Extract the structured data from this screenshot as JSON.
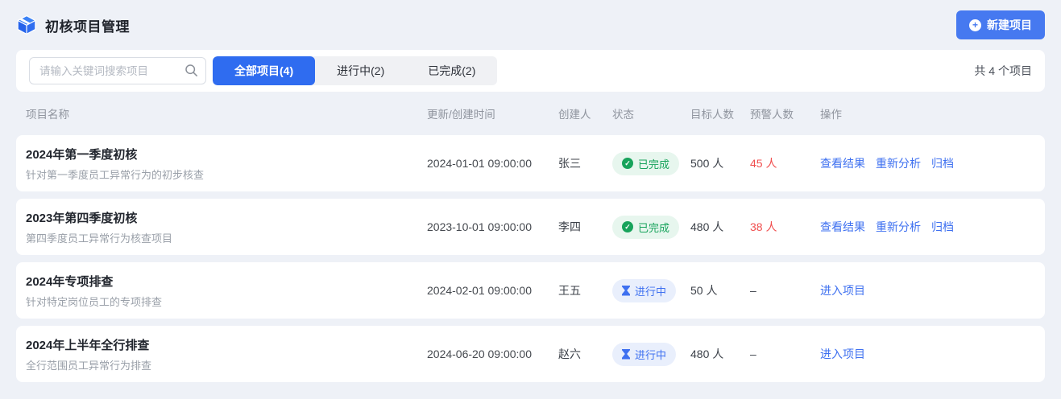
{
  "page": {
    "title": "初核项目管理",
    "new_project_button": "新建项目",
    "total_count_text": "共 4 个项目"
  },
  "toolbar": {
    "search_placeholder": "请输入关键词搜索项目",
    "tabs": [
      {
        "label": "全部项目(4)",
        "active": true
      },
      {
        "label": "进行中(2)",
        "active": false
      },
      {
        "label": "已完成(2)",
        "active": false
      }
    ]
  },
  "table": {
    "columns": [
      "项目名称",
      "更新/创建时间",
      "创建人",
      "状态",
      "目标人数",
      "预警人数",
      "操作"
    ],
    "rows": [
      {
        "name": "2024年第一季度初核",
        "description": "针对第一季度员工异常行为的初步核查",
        "time": "2024-01-01 09:00:00",
        "creator": "张三",
        "status": "已完成",
        "status_type": "done",
        "target": "500 人",
        "warning": "45 人",
        "warning_alert": true,
        "actions": [
          "查看结果",
          "重新分析",
          "归档"
        ]
      },
      {
        "name": "2023年第四季度初核",
        "description": "第四季度员工异常行为核查项目",
        "time": "2023-10-01 09:00:00",
        "creator": "李四",
        "status": "已完成",
        "status_type": "done",
        "target": "480 人",
        "warning": "38 人",
        "warning_alert": true,
        "actions": [
          "查看结果",
          "重新分析",
          "归档"
        ]
      },
      {
        "name": "2024年专项排查",
        "description": "针对特定岗位员工的专项排查",
        "time": "2024-02-01 09:00:00",
        "creator": "王五",
        "status": "进行中",
        "status_type": "progress",
        "target": "50 人",
        "warning": "–",
        "warning_alert": false,
        "actions": [
          "进入项目"
        ]
      },
      {
        "name": "2024年上半年全行排查",
        "description": "全行范围员工异常行为排查",
        "time": "2024-06-20 09:00:00",
        "creator": "赵六",
        "status": "进行中",
        "status_type": "progress",
        "target": "480 人",
        "warning": "–",
        "warning_alert": false,
        "actions": [
          "进入项目"
        ]
      }
    ]
  },
  "icons": {
    "header": "cube-icon",
    "new_project": "plus-circle-icon",
    "search": "search-icon",
    "status_done": "check-circle-icon",
    "status_progress": "hourglass-icon"
  },
  "colors": {
    "primary_blue": "#4679f0",
    "link_blue": "#3e70f0",
    "success_green": "#17a35b",
    "success_bg": "#e7f6ee",
    "progress_blue": "#3e70f0",
    "progress_bg": "#e9effc",
    "alert_red": "#f04e4e",
    "page_bg": "#eef1f7"
  }
}
